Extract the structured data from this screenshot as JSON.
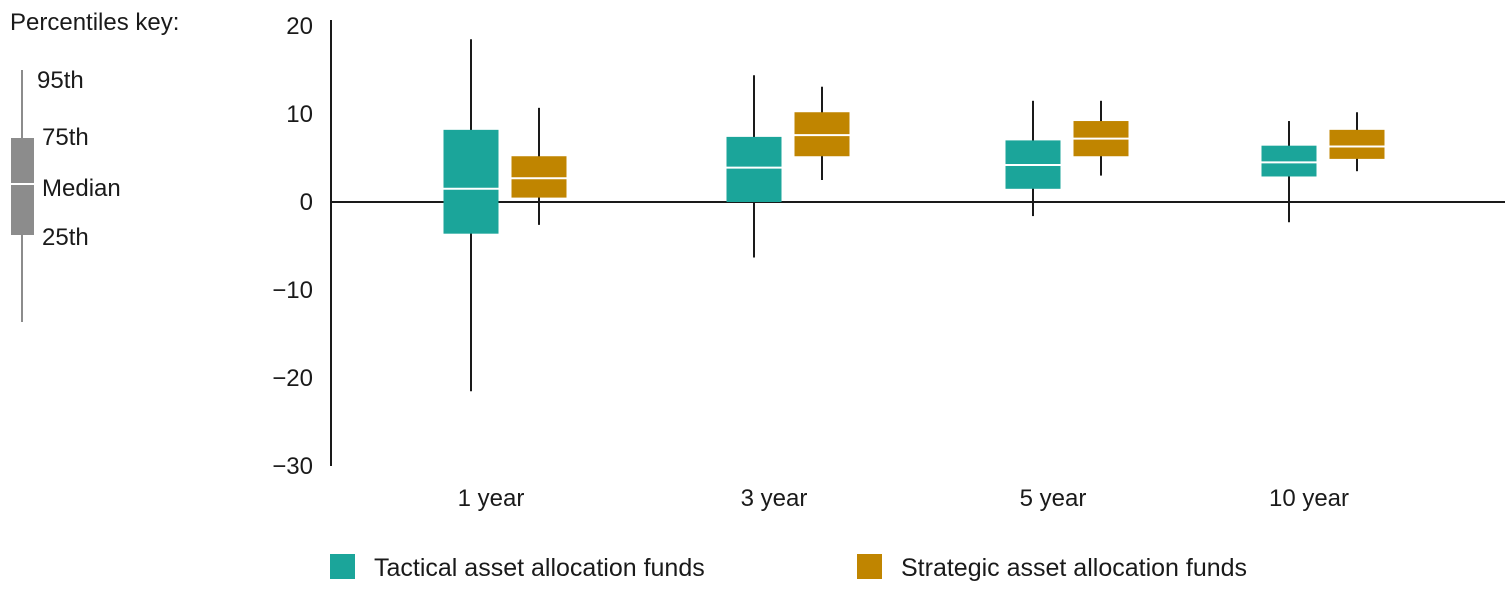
{
  "chart_data": {
    "type": "box",
    "categories": [
      "1 year",
      "3 year",
      "5 year",
      "10 year"
    ],
    "ylim": [
      -30,
      20
    ],
    "yticks": [
      20,
      10,
      0,
      -10,
      -20,
      -30
    ],
    "ytick_labels": [
      "20",
      "10",
      "0",
      "−10",
      "−20",
      "−30"
    ],
    "series": [
      {
        "name": "Tactical asset allocation funds",
        "color": "#1ba59a",
        "boxes": [
          {
            "p5": -21.5,
            "p25": -3.6,
            "median": 1.5,
            "p75": 8.2,
            "p95": 18.5
          },
          {
            "p5": -6.3,
            "p25": 0.0,
            "median": 3.9,
            "p75": 7.4,
            "p95": 14.4
          },
          {
            "p5": -1.6,
            "p25": 1.5,
            "median": 4.2,
            "p75": 7.0,
            "p95": 11.5
          },
          {
            "p5": -2.3,
            "p25": 2.9,
            "median": 4.5,
            "p75": 6.4,
            "p95": 9.2
          }
        ]
      },
      {
        "name": "Strategic asset allocation funds",
        "color": "#c08500",
        "boxes": [
          {
            "p5": -2.6,
            "p25": 0.5,
            "median": 2.7,
            "p75": 5.2,
            "p95": 10.7
          },
          {
            "p5": 2.5,
            "p25": 5.2,
            "median": 7.6,
            "p75": 10.2,
            "p95": 13.1
          },
          {
            "p5": 3.0,
            "p25": 5.2,
            "median": 7.2,
            "p75": 9.2,
            "p95": 11.5
          },
          {
            "p5": 3.5,
            "p25": 4.9,
            "median": 6.3,
            "p75": 8.2,
            "p95": 10.2
          }
        ]
      }
    ],
    "legend_position": "bottom"
  },
  "key": {
    "title": "Percentiles key:",
    "labels": {
      "p95": "95th",
      "p75": "75th",
      "median": "Median",
      "p25": "25th"
    },
    "color": "#8c8c8c"
  }
}
